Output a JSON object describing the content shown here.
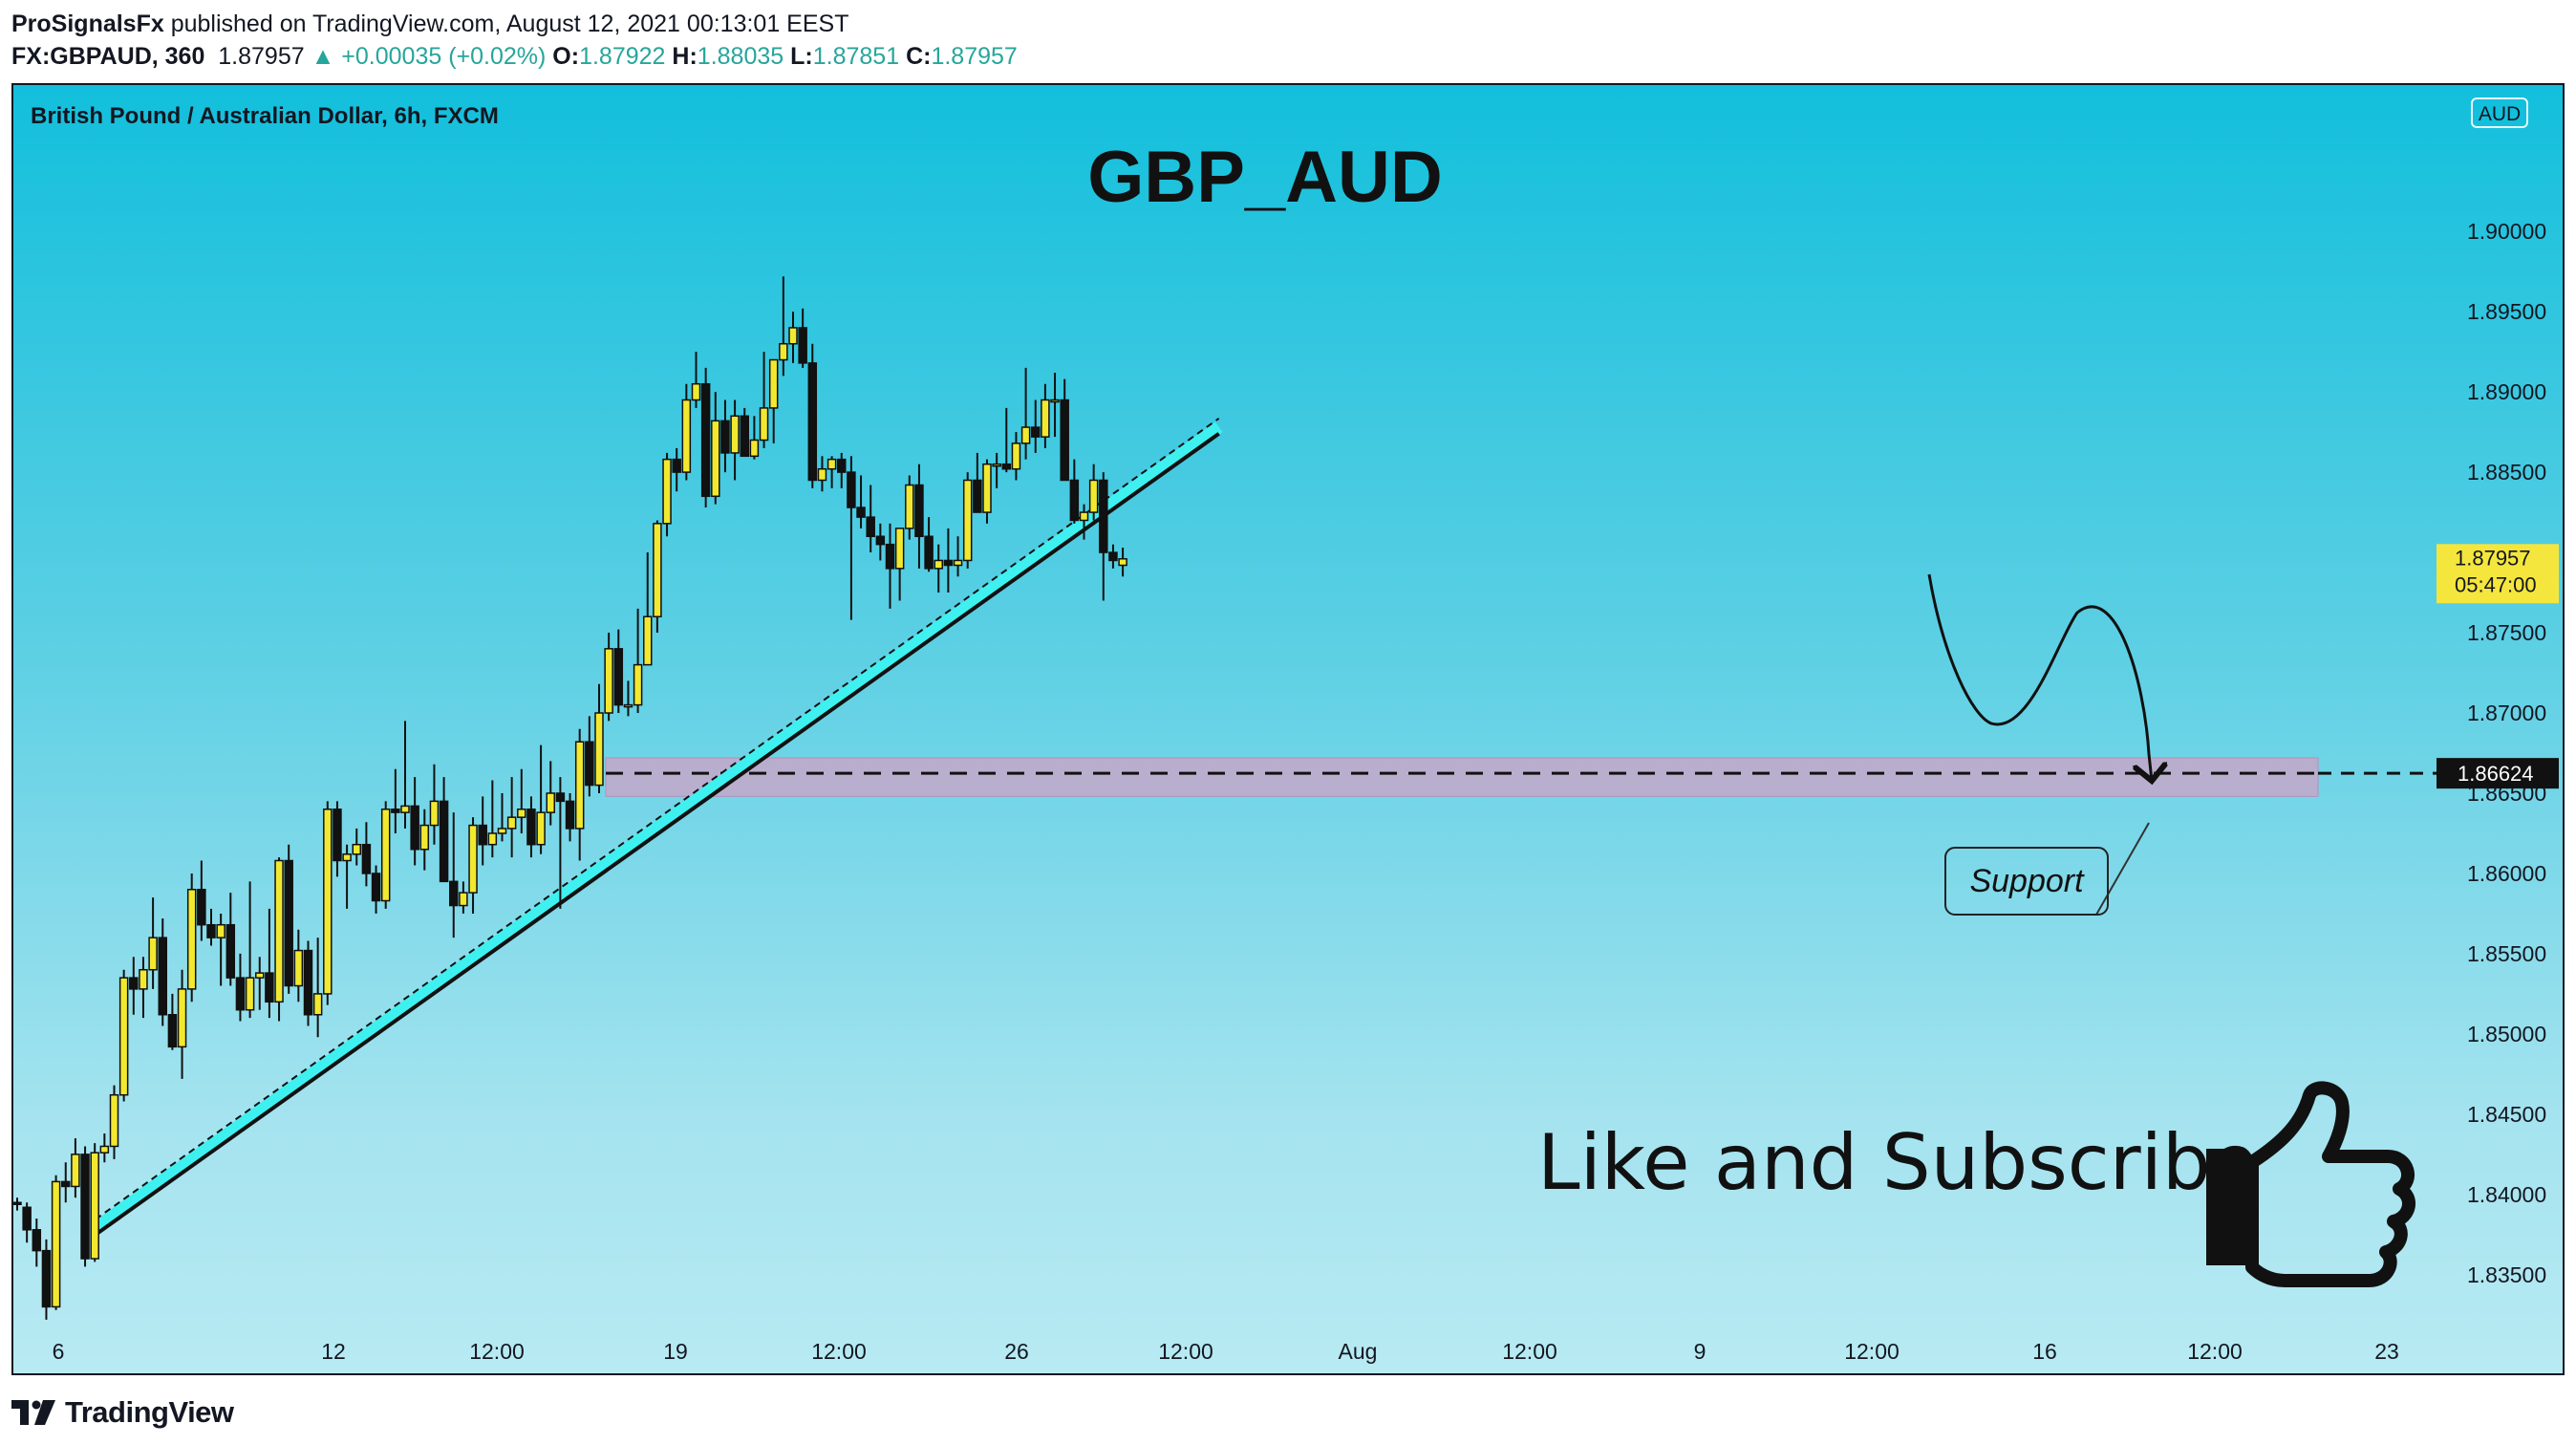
{
  "header": {
    "publisher": "ProSignalsFx",
    "published_text": " published on TradingView.com, August 12, 2021 00:13:01 EEST",
    "symbol": "FX:GBPAUD, 360",
    "last": "1.87957",
    "change": "▲ +0.00035 (+0.02%)",
    "o_label": "O:",
    "o": "1.87922",
    "h_label": "H:",
    "h": "1.88035",
    "l_label": "L:",
    "l": "1.87851",
    "c_label": "C:",
    "c": "1.87957"
  },
  "footer": {
    "brand": "TradingView"
  },
  "chart_data": {
    "type": "candlestick",
    "instrument": "British Pound / Australian Dollar, 6h, FXCM",
    "title": "GBP_AUD",
    "currency_badge": "AUD",
    "y_range": [
      1.831,
      1.9065
    ],
    "y_ticks": [
      "1.90000",
      "1.89500",
      "1.89000",
      "1.88500",
      "1.88000",
      "1.87500",
      "1.87000",
      "1.86500",
      "1.86000",
      "1.85500",
      "1.85000",
      "1.84500",
      "1.84000",
      "1.83500"
    ],
    "x_ticks": [
      "6",
      "12",
      "12:00",
      "19",
      "12:00",
      "26",
      "12:00",
      "Aug",
      "12:00",
      "9",
      "12:00",
      "16",
      "12:00",
      "23"
    ],
    "price_label": {
      "value": "1.87957",
      "countdown": "05:47:00",
      "color": "#f5e63d"
    },
    "level_label": {
      "value": "1.86624"
    },
    "support_zone": [
      1.8648,
      1.8672
    ],
    "support_level": 1.86624,
    "trendline": {
      "from": [
        0.0,
        1.8375
      ],
      "to": [
        118.0,
        1.8874
      ]
    },
    "annotation": "Support",
    "callout": "Like and Subscribe",
    "colors": {
      "up": "#f2e830",
      "down": "#111111",
      "trendline": "#3ff0f0"
    },
    "ohlc": [
      [
        1.8395,
        1.8398,
        1.839,
        1.8394
      ],
      [
        1.8392,
        1.8395,
        1.837,
        1.8378
      ],
      [
        1.8378,
        1.8385,
        1.8355,
        1.8365
      ],
      [
        1.8365,
        1.8372,
        1.8322,
        1.833
      ],
      [
        1.833,
        1.8412,
        1.8328,
        1.8408
      ],
      [
        1.8408,
        1.842,
        1.8395,
        1.8405
      ],
      [
        1.8405,
        1.8435,
        1.8398,
        1.8425
      ],
      [
        1.8425,
        1.843,
        1.8355,
        1.836
      ],
      [
        1.836,
        1.8432,
        1.8358,
        1.8426
      ],
      [
        1.8426,
        1.8438,
        1.842,
        1.843
      ],
      [
        1.843,
        1.8468,
        1.8422,
        1.8462
      ],
      [
        1.8462,
        1.854,
        1.8458,
        1.8535
      ],
      [
        1.8535,
        1.8548,
        1.8512,
        1.8528
      ],
      [
        1.8528,
        1.8548,
        1.851,
        1.854
      ],
      [
        1.854,
        1.8585,
        1.8528,
        1.856
      ],
      [
        1.856,
        1.8572,
        1.8505,
        1.8512
      ],
      [
        1.8512,
        1.8525,
        1.849,
        1.8492
      ],
      [
        1.8492,
        1.854,
        1.8472,
        1.8528
      ],
      [
        1.8528,
        1.86,
        1.852,
        1.859
      ],
      [
        1.859,
        1.8608,
        1.8558,
        1.8568
      ],
      [
        1.8568,
        1.8578,
        1.8555,
        1.856
      ],
      [
        1.856,
        1.8575,
        1.853,
        1.8568
      ],
      [
        1.8568,
        1.8588,
        1.853,
        1.8535
      ],
      [
        1.8535,
        1.855,
        1.8508,
        1.8515
      ],
      [
        1.8515,
        1.8595,
        1.851,
        1.8535
      ],
      [
        1.8535,
        1.8548,
        1.8515,
        1.8538
      ],
      [
        1.8538,
        1.8578,
        1.851,
        1.852
      ],
      [
        1.852,
        1.861,
        1.8508,
        1.8608
      ],
      [
        1.8608,
        1.8618,
        1.8525,
        1.853
      ],
      [
        1.853,
        1.8565,
        1.852,
        1.8552
      ],
      [
        1.8552,
        1.8558,
        1.8505,
        1.8512
      ],
      [
        1.8512,
        1.856,
        1.8498,
        1.8525
      ],
      [
        1.8525,
        1.8645,
        1.8518,
        1.864
      ],
      [
        1.864,
        1.8645,
        1.8598,
        1.8608
      ],
      [
        1.8608,
        1.8618,
        1.8578,
        1.8612
      ],
      [
        1.8612,
        1.8628,
        1.8605,
        1.8618
      ],
      [
        1.8618,
        1.8632,
        1.8592,
        1.86
      ],
      [
        1.86,
        1.8605,
        1.8575,
        1.8583
      ],
      [
        1.8583,
        1.8645,
        1.8578,
        1.864
      ],
      [
        1.864,
        1.8665,
        1.8625,
        1.8638
      ],
      [
        1.8638,
        1.8695,
        1.8628,
        1.8642
      ],
      [
        1.8642,
        1.866,
        1.8605,
        1.8615
      ],
      [
        1.8615,
        1.864,
        1.8602,
        1.863
      ],
      [
        1.863,
        1.8668,
        1.8618,
        1.8645
      ],
      [
        1.8645,
        1.866,
        1.8595,
        1.8595
      ],
      [
        1.8595,
        1.8638,
        1.856,
        1.858
      ],
      [
        1.858,
        1.8595,
        1.8575,
        1.8588
      ],
      [
        1.8588,
        1.8635,
        1.8575,
        1.863
      ],
      [
        1.863,
        1.8648,
        1.8605,
        1.8618
      ],
      [
        1.8618,
        1.8658,
        1.861,
        1.8625
      ],
      [
        1.8625,
        1.865,
        1.862,
        1.8628
      ],
      [
        1.8628,
        1.866,
        1.861,
        1.8635
      ],
      [
        1.8635,
        1.8665,
        1.8625,
        1.864
      ],
      [
        1.864,
        1.8648,
        1.861,
        1.8618
      ],
      [
        1.8618,
        1.868,
        1.8612,
        1.8638
      ],
      [
        1.8638,
        1.867,
        1.863,
        1.865
      ],
      [
        1.865,
        1.866,
        1.8578,
        1.8645
      ],
      [
        1.8645,
        1.865,
        1.862,
        1.8628
      ],
      [
        1.8628,
        1.869,
        1.8608,
        1.8682
      ],
      [
        1.8682,
        1.8698,
        1.8648,
        1.8655
      ],
      [
        1.8655,
        1.8718,
        1.865,
        1.87
      ],
      [
        1.87,
        1.875,
        1.8695,
        1.874
      ],
      [
        1.874,
        1.8752,
        1.87,
        1.8705
      ],
      [
        1.8705,
        1.872,
        1.8698,
        1.8705
      ],
      [
        1.8705,
        1.8765,
        1.87,
        1.873
      ],
      [
        1.873,
        1.88,
        1.873,
        1.876
      ],
      [
        1.876,
        1.882,
        1.875,
        1.8818
      ],
      [
        1.8818,
        1.8862,
        1.881,
        1.8858
      ],
      [
        1.8858,
        1.8865,
        1.8838,
        1.885
      ],
      [
        1.885,
        1.8905,
        1.8845,
        1.8895
      ],
      [
        1.8895,
        1.8925,
        1.889,
        1.8905
      ],
      [
        1.8905,
        1.8915,
        1.8828,
        1.8835
      ],
      [
        1.8835,
        1.89,
        1.883,
        1.8882
      ],
      [
        1.8882,
        1.8895,
        1.885,
        1.8862
      ],
      [
        1.8862,
        1.8895,
        1.8845,
        1.8885
      ],
      [
        1.8885,
        1.889,
        1.886,
        1.886
      ],
      [
        1.886,
        1.8885,
        1.8858,
        1.887
      ],
      [
        1.887,
        1.8925,
        1.8865,
        1.889
      ],
      [
        1.889,
        1.892,
        1.8868,
        1.892
      ],
      [
        1.892,
        1.8972,
        1.891,
        1.893
      ],
      [
        1.893,
        1.895,
        1.8918,
        1.894
      ],
      [
        1.894,
        1.8952,
        1.8915,
        1.8918
      ],
      [
        1.8918,
        1.893,
        1.884,
        1.8845
      ],
      [
        1.8845,
        1.886,
        1.8838,
        1.8852
      ],
      [
        1.8852,
        1.886,
        1.884,
        1.8858
      ],
      [
        1.8858,
        1.8862,
        1.884,
        1.885
      ],
      [
        1.885,
        1.886,
        1.8758,
        1.8828
      ],
      [
        1.8828,
        1.8848,
        1.8815,
        1.8822
      ],
      [
        1.8822,
        1.8842,
        1.88,
        1.881
      ],
      [
        1.881,
        1.8818,
        1.8795,
        1.8805
      ],
      [
        1.8805,
        1.8818,
        1.8765,
        1.879
      ],
      [
        1.879,
        1.8815,
        1.877,
        1.8815
      ],
      [
        1.8815,
        1.8848,
        1.8808,
        1.8842
      ],
      [
        1.8842,
        1.8855,
        1.879,
        1.881
      ],
      [
        1.881,
        1.8822,
        1.8788,
        1.879
      ],
      [
        1.879,
        1.8805,
        1.8775,
        1.8795
      ],
      [
        1.8795,
        1.8815,
        1.8775,
        1.8792
      ],
      [
        1.8792,
        1.881,
        1.8785,
        1.8795
      ],
      [
        1.8795,
        1.885,
        1.879,
        1.8845
      ],
      [
        1.8845,
        1.8862,
        1.8825,
        1.8825
      ],
      [
        1.8825,
        1.8858,
        1.8818,
        1.8855
      ],
      [
        1.8855,
        1.8862,
        1.884,
        1.8855
      ],
      [
        1.8855,
        1.889,
        1.885,
        1.8852
      ],
      [
        1.8852,
        1.8875,
        1.8845,
        1.8868
      ],
      [
        1.8868,
        1.8915,
        1.8858,
        1.8878
      ],
      [
        1.8878,
        1.8895,
        1.8862,
        1.8872
      ],
      [
        1.8872,
        1.8905,
        1.8865,
        1.8895
      ],
      [
        1.8895,
        1.8912,
        1.8872,
        1.8895
      ],
      [
        1.8895,
        1.8908,
        1.8845,
        1.8845
      ],
      [
        1.8845,
        1.8858,
        1.8818,
        1.882
      ],
      [
        1.882,
        1.883,
        1.8808,
        1.8825
      ],
      [
        1.8825,
        1.8855,
        1.882,
        1.8845
      ],
      [
        1.8845,
        1.885,
        1.877,
        1.88
      ],
      [
        1.88,
        1.8805,
        1.879,
        1.8795
      ],
      [
        1.8792,
        1.8803,
        1.8785,
        1.8796
      ]
    ]
  }
}
